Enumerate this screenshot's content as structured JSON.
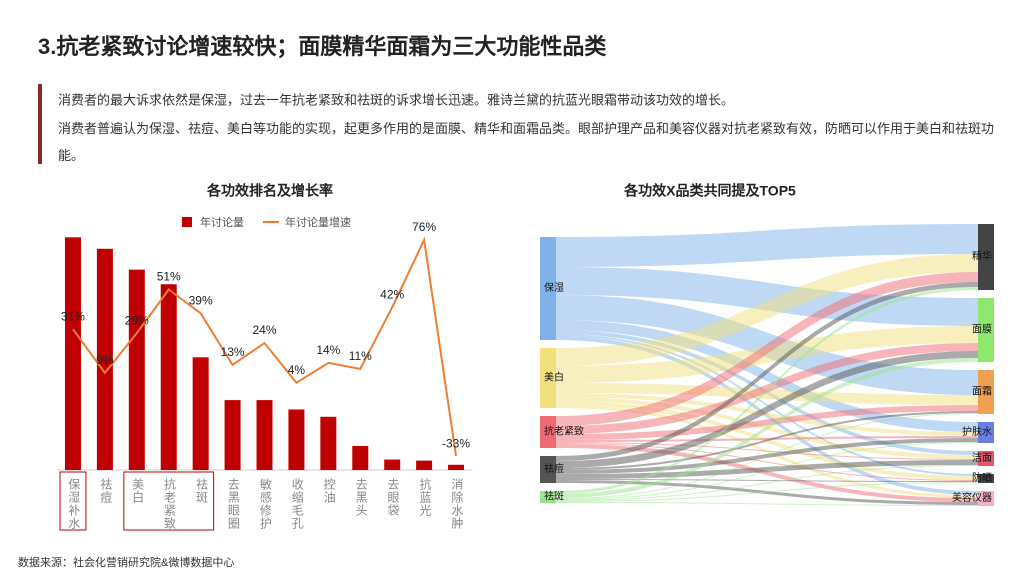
{
  "header": {
    "title": "3.抗老紧致讨论增速较快；面膜精华面霜为三大功能性品类"
  },
  "paragraphs": [
    "消费者的最大诉求依然是保湿，过去一年抗老紧致和祛斑的诉求增长迅速。雅诗兰黛的抗蓝光眼霜带动该功效的增长。",
    "消费者普遍认为保湿、祛痘、美白等功能的实现，起更多作用的是面膜、精华和面霜品类。眼部护理产品和美容仪器对抗老紧致有效，防晒可以作用于美白和祛斑功能。"
  ],
  "source": "数据来源：社会化营销研究院&微博数据中心",
  "chart_data": [
    {
      "type": "bar",
      "title": "各功效排名及增长率",
      "categories": [
        "保湿补水",
        "祛痘",
        "美白",
        "抗老紧致",
        "祛斑",
        "去黑眼圈",
        "敏感修护",
        "收缩毛孔",
        "控油",
        "去黑头",
        "去眼袋",
        "抗蓝光",
        "消除水肿"
      ],
      "ylim": [
        0,
        230
      ],
      "y2lim": [
        -40,
        81
      ],
      "series": [
        {
          "name": "年讨论量",
          "type": "bar",
          "color": "#c00000",
          "values": [
            223,
            212,
            192,
            178,
            108,
            67,
            67,
            58,
            51,
            23,
            10,
            9,
            5
          ]
        },
        {
          "name": "年讨论量增速",
          "type": "line",
          "axis": "y2",
          "color": "#ed7d31",
          "values": [
            31,
            9,
            29,
            51,
            39,
            13,
            24,
            4,
            14,
            11,
            42,
            76,
            -33
          ],
          "value_labels": [
            "31%",
            "9%",
            "29%",
            "51%",
            "39%",
            "13%",
            "24%",
            "4%",
            "14%",
            "11%",
            "42%",
            "76%",
            "-33%"
          ]
        }
      ]
    },
    {
      "type": "sankey",
      "title": "各功效X品类共同提及TOP5",
      "nodes": [
        {
          "name": "保湿",
          "color": "#7fb2e8"
        },
        {
          "name": "美白",
          "color": "#f2df7d"
        },
        {
          "name": "抗老紧致",
          "color": "#ef6b73"
        },
        {
          "name": "祛痘",
          "color": "#555555"
        },
        {
          "name": "祛斑",
          "color": "#9be38e"
        },
        {
          "name": "精华",
          "color": "#444444"
        },
        {
          "name": "面膜",
          "color": "#8ee86b"
        },
        {
          "name": "面霜",
          "color": "#f0a050"
        },
        {
          "name": "护肤水",
          "color": "#6a7fe0"
        },
        {
          "name": "洁面",
          "color": "#e8556a"
        },
        {
          "name": "防晒",
          "color": "#444444"
        },
        {
          "name": "美容仪器",
          "color": "#f7b0c8"
        }
      ],
      "links": [
        {
          "source": "保湿",
          "target": "精华",
          "value": 30
        },
        {
          "source": "保湿",
          "target": "面膜",
          "value": 28
        },
        {
          "source": "保湿",
          "target": "面霜",
          "value": 25
        },
        {
          "source": "保湿",
          "target": "护肤水",
          "value": 10
        },
        {
          "source": "保湿",
          "target": "洁面",
          "value": 4
        },
        {
          "source": "保湿",
          "target": "防晒",
          "value": 2
        },
        {
          "source": "保湿",
          "target": "美容仪器",
          "value": 4
        },
        {
          "source": "美白",
          "target": "精华",
          "value": 18
        },
        {
          "source": "美白",
          "target": "面膜",
          "value": 17
        },
        {
          "source": "美白",
          "target": "面霜",
          "value": 10
        },
        {
          "source": "美白",
          "target": "护肤水",
          "value": 4
        },
        {
          "source": "美白",
          "target": "洁面",
          "value": 4
        },
        {
          "source": "美白",
          "target": "防晒",
          "value": 4
        },
        {
          "source": "美白",
          "target": "美容仪器",
          "value": 3
        },
        {
          "source": "抗老紧致",
          "target": "精华",
          "value": 10
        },
        {
          "source": "抗老紧致",
          "target": "面膜",
          "value": 8
        },
        {
          "source": "抗老紧致",
          "target": "面霜",
          "value": 6
        },
        {
          "source": "抗老紧致",
          "target": "护肤水",
          "value": 2
        },
        {
          "source": "抗老紧致",
          "target": "洁面",
          "value": 1
        },
        {
          "source": "抗老紧致",
          "target": "防晒",
          "value": 1
        },
        {
          "source": "抗老紧致",
          "target": "美容仪器",
          "value": 4
        },
        {
          "source": "祛痘",
          "target": "精华",
          "value": 5
        },
        {
          "source": "祛痘",
          "target": "面膜",
          "value": 7
        },
        {
          "source": "祛痘",
          "target": "面霜",
          "value": 2
        },
        {
          "source": "祛痘",
          "target": "护肤水",
          "value": 4
        },
        {
          "source": "祛痘",
          "target": "洁面",
          "value": 5
        },
        {
          "source": "祛痘",
          "target": "防晒",
          "value": 1
        },
        {
          "source": "祛痘",
          "target": "美容仪器",
          "value": 3
        },
        {
          "source": "祛斑",
          "target": "精华",
          "value": 3
        },
        {
          "source": "祛斑",
          "target": "面膜",
          "value": 4
        },
        {
          "source": "祛斑",
          "target": "面霜",
          "value": 1
        },
        {
          "source": "祛斑",
          "target": "护肤水",
          "value": 1
        },
        {
          "source": "祛斑",
          "target": "洁面",
          "value": 1
        },
        {
          "source": "祛斑",
          "target": "防晒",
          "value": 1
        },
        {
          "source": "祛斑",
          "target": "美容仪器",
          "value": 1
        }
      ]
    }
  ]
}
